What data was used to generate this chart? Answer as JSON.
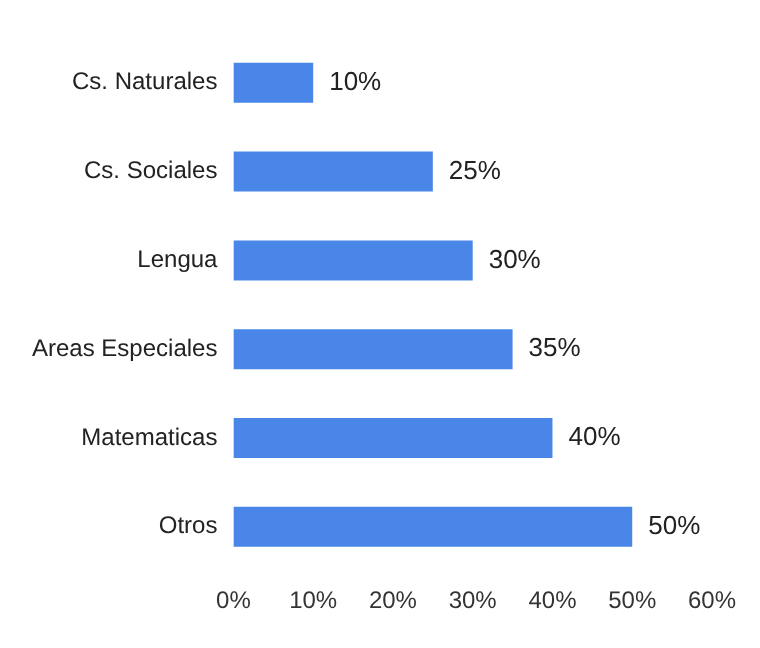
{
  "chart_data": {
    "type": "bar",
    "orientation": "horizontal",
    "categories": [
      "Cs. Naturales",
      "Cs. Sociales",
      "Lengua",
      "Areas Especiales",
      "Matematicas",
      "Otros"
    ],
    "values": [
      10,
      25,
      30,
      35,
      40,
      50
    ],
    "value_labels": [
      "10%",
      "25%",
      "30%",
      "35%",
      "40%",
      "50%"
    ],
    "color": "#4a86e8",
    "xlim": [
      0,
      60
    ],
    "xticks": [
      {
        "value": 0,
        "label": "0%"
      },
      {
        "value": 10,
        "label": "10%"
      },
      {
        "value": 20,
        "label": "20%"
      },
      {
        "value": 30,
        "label": "30%"
      },
      {
        "value": 40,
        "label": "40%"
      },
      {
        "value": 50,
        "label": "50%"
      },
      {
        "value": 60,
        "label": "60%"
      }
    ],
    "grid": false,
    "legend": false
  }
}
